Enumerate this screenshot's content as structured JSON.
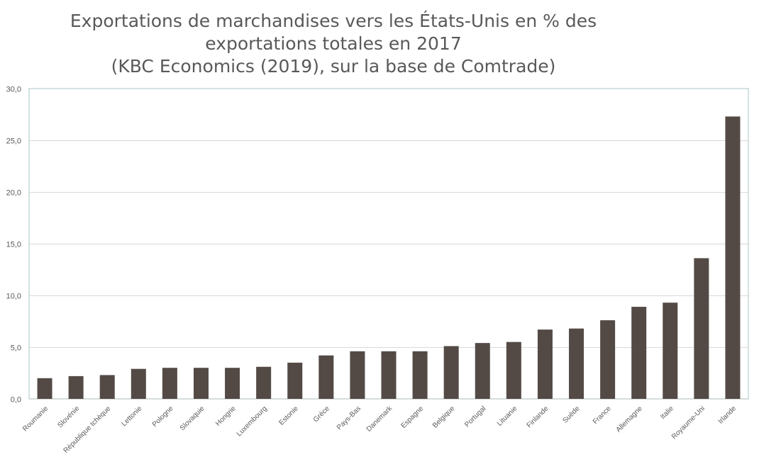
{
  "chart_data": {
    "type": "bar",
    "title_lines": [
      "Exportations de marchandises vers les États-Unis en % des",
      "exportations totales en 2017",
      "(KBC Economics (2019), sur la base de Comtrade)"
    ],
    "categories": [
      "Roumanie",
      "Slovénie",
      "République tchèque",
      "Lettonie",
      "Pologne",
      "Slovaquie",
      "Hongrie",
      "Luxembourg",
      "Estonie",
      "Grèce",
      "Pays-Bas",
      "Danemark",
      "Espagne",
      "Belgique",
      "Portugal",
      "Lituanie",
      "Finlande",
      "Suède",
      "France",
      "Allemagne",
      "Italie",
      "Royaume-Uni",
      "Irlande"
    ],
    "values": [
      2.0,
      2.2,
      2.3,
      2.9,
      3.0,
      3.0,
      3.0,
      3.1,
      3.5,
      4.2,
      4.6,
      4.6,
      4.6,
      5.1,
      5.4,
      5.5,
      6.7,
      6.8,
      7.6,
      8.9,
      9.3,
      13.6,
      27.3
    ],
    "yticks": [
      "0,0",
      "5,0",
      "10,0",
      "15,0",
      "20,0",
      "25,0",
      "30,0"
    ],
    "ylim": [
      0,
      30
    ],
    "grid": true,
    "bar_color": "#534a46",
    "grid_color": "#d9d9d9",
    "axis_border_color": "#a9c4c4"
  }
}
